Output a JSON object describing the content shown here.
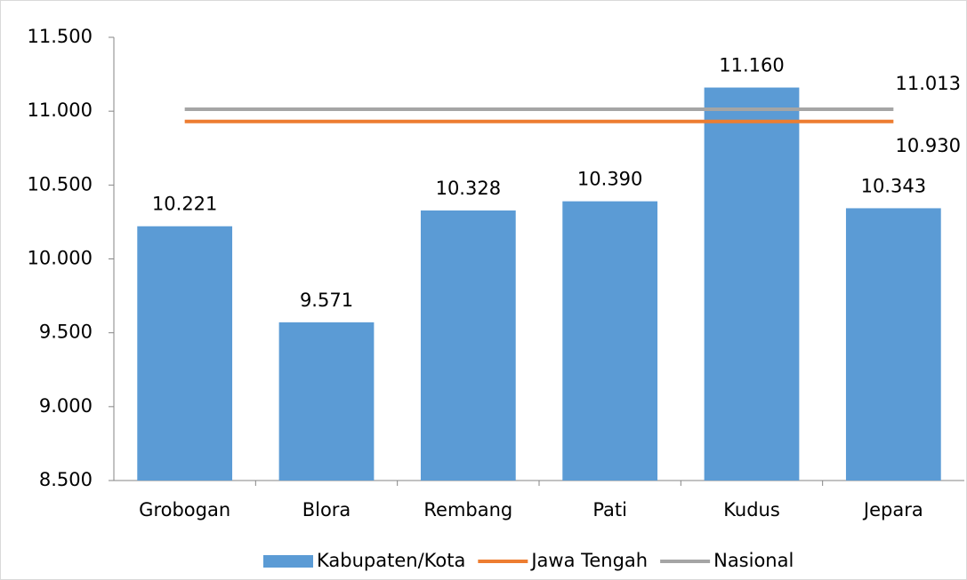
{
  "chart_data": {
    "type": "bar",
    "categories": [
      "Grobogan",
      "Blora",
      "Rembang",
      "Pati",
      "Kudus",
      "Jepara"
    ],
    "series": [
      {
        "name": "Kabupaten/Kota",
        "type": "bar",
        "color": "#5b9bd5",
        "values": [
          10221,
          9571,
          10328,
          10390,
          11160,
          10343
        ],
        "value_labels": [
          "10.221",
          "9.571",
          "10.328",
          "10.390",
          "11.160",
          "10.343"
        ]
      },
      {
        "name": "Jawa Tengah",
        "type": "line",
        "color": "#ed7d31",
        "value": 10930,
        "value_label": "10.930"
      },
      {
        "name": "Nasional",
        "type": "line",
        "color": "#a5a5a5",
        "value": 11013,
        "value_label": "11.013"
      }
    ],
    "ylim": [
      8500,
      11500
    ],
    "yticks": [
      {
        "value": 8500,
        "label": "8.500"
      },
      {
        "value": 9000,
        "label": "9.000"
      },
      {
        "value": 9500,
        "label": "9.500"
      },
      {
        "value": 10000,
        "label": "10.000"
      },
      {
        "value": 10500,
        "label": "10.500"
      },
      {
        "value": 11000,
        "label": "11.000"
      },
      {
        "value": 11500,
        "label": "11.500"
      }
    ],
    "grid": false,
    "legend": "bottom"
  }
}
